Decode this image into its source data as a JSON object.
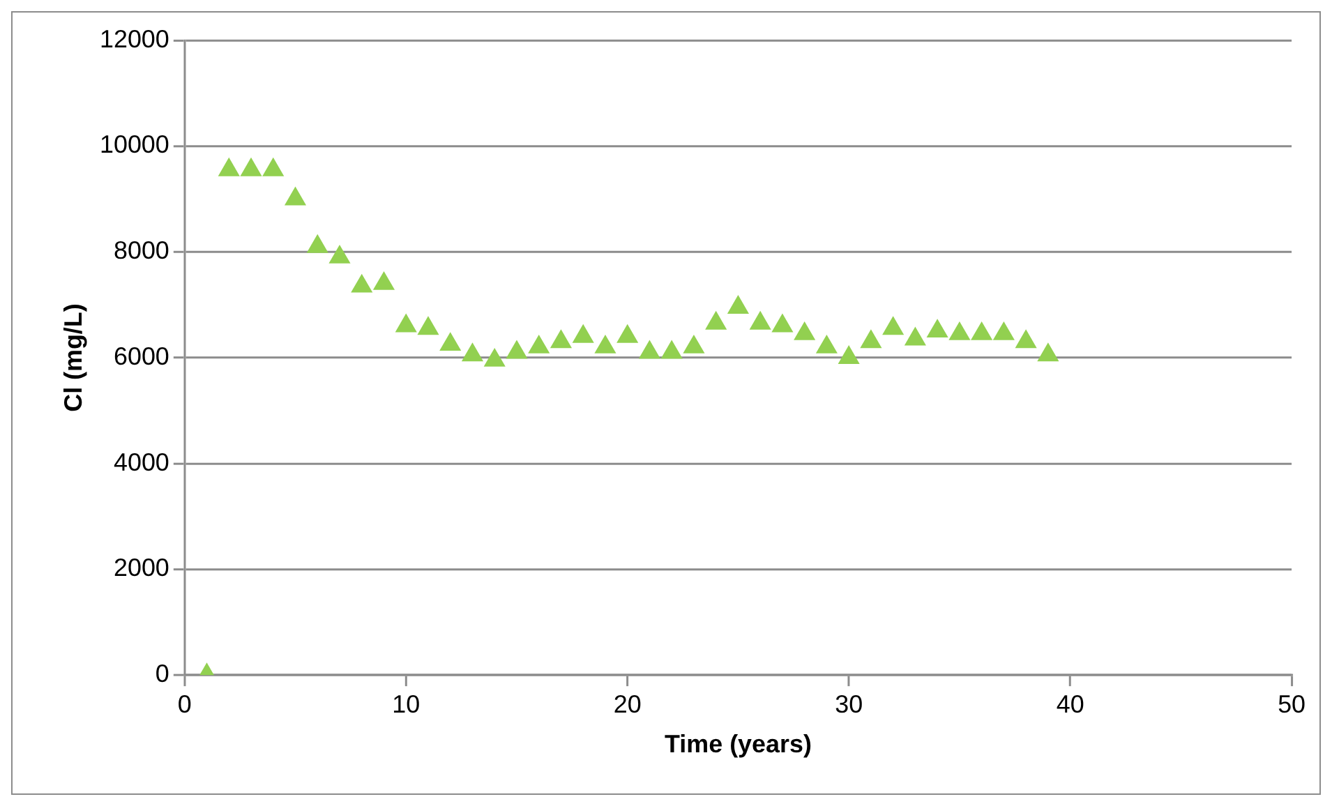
{
  "chart_data": {
    "type": "scatter",
    "xlabel": "Time (years)",
    "ylabel": "Cl (mg/L)",
    "x": [
      1,
      2,
      3,
      4,
      5,
      6,
      7,
      8,
      9,
      10,
      11,
      12,
      13,
      14,
      15,
      16,
      17,
      18,
      19,
      20,
      21,
      22,
      23,
      24,
      25,
      26,
      27,
      28,
      29,
      30,
      31,
      32,
      33,
      34,
      35,
      36,
      37,
      38,
      39
    ],
    "series": [
      {
        "color": "#92d050",
        "values": [
          0,
          9550,
          9550,
          9550,
          9000,
          8100,
          7900,
          7350,
          7400,
          6600,
          6550,
          6250,
          6050,
          5950,
          6100,
          6200,
          6300,
          6400,
          6200,
          6400,
          6100,
          6100,
          6200,
          6650,
          6950,
          6650,
          6600,
          6450,
          6200,
          6000,
          6300,
          6550,
          6350,
          6500,
          6450,
          6450,
          6450,
          6300,
          6050
        ]
      }
    ],
    "xlim": [
      0,
      50
    ],
    "xticks": [
      0,
      10,
      20,
      30,
      40,
      50
    ],
    "ylim": [
      0,
      12000
    ],
    "yticks": [
      0,
      2000,
      4000,
      6000,
      8000,
      10000,
      12000
    ],
    "grid": "y",
    "legend": false,
    "marker": "triangle"
  }
}
